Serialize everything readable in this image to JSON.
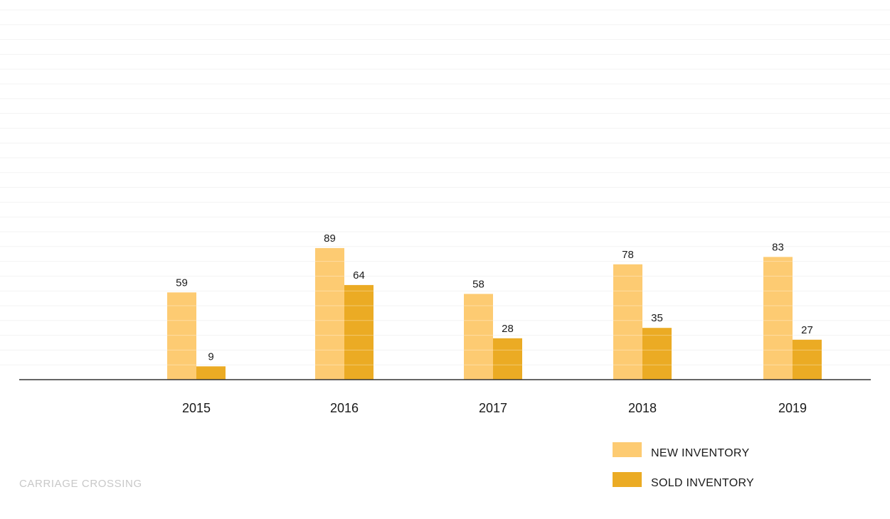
{
  "chart_data": {
    "type": "bar",
    "title": "",
    "xlabel": "",
    "ylabel": "",
    "categories": [
      "2015",
      "2016",
      "2017",
      "2018",
      "2019"
    ],
    "series": [
      {
        "name": "NEW INVENTORY",
        "values": [
          59,
          89,
          58,
          78,
          83
        ],
        "color": "#FDCB72"
      },
      {
        "name": "SOLD INVENTORY",
        "values": [
          9,
          64,
          28,
          35,
          27
        ],
        "color": "#EBAB24"
      }
    ],
    "ylim": [
      0,
      250
    ],
    "grid": true,
    "legend": "bottom-right"
  },
  "colors": {
    "axis": "#333333",
    "grid": "#f3f3f3",
    "separator": "#ffffff"
  },
  "watermark": "CARRIAGE CROSSING"
}
